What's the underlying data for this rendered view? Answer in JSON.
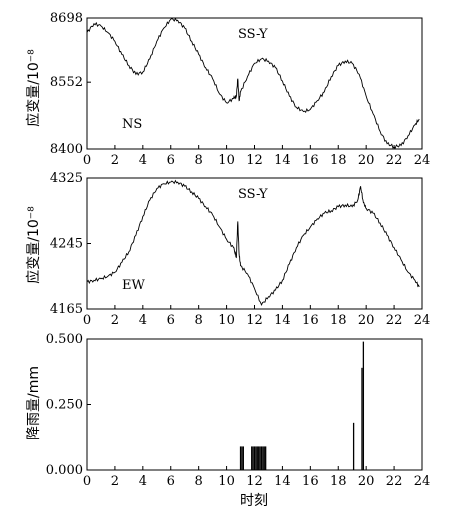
{
  "chart_data": [
    {
      "type": "line",
      "title": "",
      "ylabel": "应变量/10⁻⁸",
      "xlabel": "",
      "xlim": [
        0,
        24
      ],
      "ylim": [
        8400,
        8698
      ],
      "yticks": [
        "8698",
        "8552",
        "8400"
      ],
      "xticks": [
        "0",
        "2",
        "4",
        "6",
        "8",
        "10",
        "12",
        "14",
        "16",
        "18",
        "20",
        "22",
        "24"
      ],
      "annotations": [
        "SS-Y",
        "NS"
      ],
      "grid": false,
      "series": [
        {
          "x": [
            0,
            0.5,
            1.0,
            1.5,
            2.0,
            2.5,
            3.0,
            3.5,
            4.0,
            4.5,
            5.0,
            5.5,
            6.0,
            6.5,
            7.0,
            7.5,
            8.0,
            8.5,
            9.0,
            9.5,
            10.0,
            10.5,
            10.7,
            10.8,
            10.9,
            11.0,
            11.5,
            12.0,
            12.5,
            13.0,
            13.5,
            14.0,
            14.5,
            15.0,
            15.5,
            16.0,
            16.5,
            17.0,
            17.5,
            18.0,
            18.5,
            19.0,
            19.5,
            20.0,
            20.5,
            21.0,
            21.5,
            22.0,
            22.5,
            23.0,
            23.5,
            23.8
          ],
          "y": [
            8665,
            8685,
            8680,
            8665,
            8645,
            8615,
            8590,
            8570,
            8575,
            8605,
            8645,
            8675,
            8695,
            8693,
            8675,
            8645,
            8615,
            8585,
            8560,
            8525,
            8505,
            8515,
            8520,
            8560,
            8510,
            8530,
            8565,
            8595,
            8605,
            8600,
            8585,
            8555,
            8520,
            8495,
            8485,
            8490,
            8510,
            8530,
            8565,
            8590,
            8600,
            8595,
            8570,
            8520,
            8480,
            8440,
            8412,
            8405,
            8408,
            8430,
            8455,
            8468
          ]
        }
      ]
    },
    {
      "type": "line",
      "title": "",
      "ylabel": "应变量/10⁻⁸",
      "xlabel": "",
      "xlim": [
        0,
        24
      ],
      "ylim": [
        4165,
        4325
      ],
      "yticks": [
        "4325",
        "4245",
        "4165"
      ],
      "xticks": [
        "0",
        "2",
        "4",
        "6",
        "8",
        "10",
        "12",
        "14",
        "16",
        "18",
        "20",
        "22",
        "24"
      ],
      "annotations": [
        "SS-Y",
        "EW"
      ],
      "grid": false,
      "series": [
        {
          "x": [
            0,
            0.5,
            1.0,
            1.5,
            2.0,
            2.5,
            3.0,
            3.5,
            4.0,
            4.5,
            5.0,
            5.5,
            6.0,
            6.5,
            7.0,
            7.5,
            8.0,
            8.5,
            9.0,
            9.5,
            10.0,
            10.5,
            10.7,
            10.8,
            10.9,
            11.0,
            11.5,
            12.0,
            12.5,
            13.0,
            13.5,
            14.0,
            14.5,
            15.0,
            15.5,
            16.0,
            16.5,
            17.0,
            17.5,
            18.0,
            18.5,
            19.0,
            19.4,
            19.6,
            19.8,
            20.0,
            20.5,
            21.0,
            21.5,
            22.0,
            22.5,
            23.0,
            23.5,
            23.8
          ],
          "y": [
            4198,
            4200,
            4202,
            4205,
            4210,
            4222,
            4235,
            4255,
            4278,
            4298,
            4312,
            4318,
            4320,
            4320,
            4315,
            4308,
            4300,
            4290,
            4280,
            4265,
            4250,
            4240,
            4228,
            4272,
            4232,
            4218,
            4208,
            4190,
            4170,
            4180,
            4188,
            4200,
            4220,
            4240,
            4255,
            4265,
            4275,
            4282,
            4285,
            4290,
            4292,
            4290,
            4298,
            4315,
            4295,
            4288,
            4282,
            4270,
            4255,
            4240,
            4225,
            4210,
            4200,
            4192
          ]
        }
      ]
    },
    {
      "type": "bar",
      "title": "",
      "ylabel": "降雨量/mm",
      "xlabel": "时刻",
      "xlim": [
        0,
        24
      ],
      "ylim": [
        0,
        0.5
      ],
      "yticks": [
        "0.500",
        "0.250",
        "0.000"
      ],
      "xticks": [
        "0",
        "2",
        "4",
        "6",
        "8",
        "10",
        "12",
        "14",
        "16",
        "18",
        "20",
        "22",
        "24"
      ],
      "grid": false,
      "series": [
        {
          "x": [
            11.0,
            11.1,
            11.2,
            11.8,
            11.9,
            12.0,
            12.1,
            12.2,
            12.3,
            12.4,
            12.5,
            12.6,
            12.7,
            12.8,
            19.1,
            19.7,
            19.8
          ],
          "values": [
            0.09,
            0.09,
            0.09,
            0.09,
            0.09,
            0.09,
            0.09,
            0.09,
            0.09,
            0.09,
            0.09,
            0.09,
            0.09,
            0.09,
            0.18,
            0.39,
            0.49
          ]
        }
      ]
    }
  ]
}
